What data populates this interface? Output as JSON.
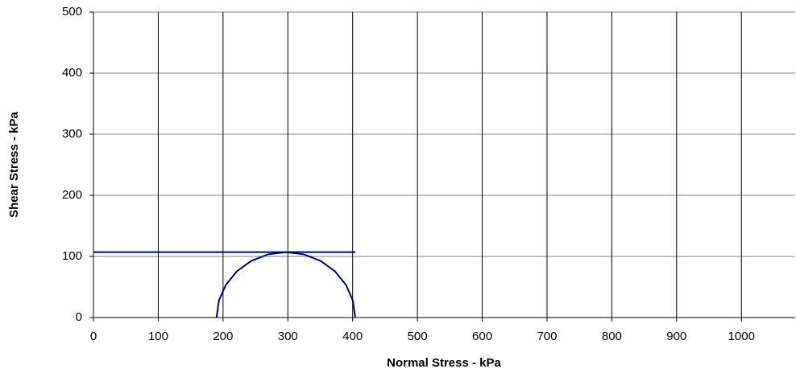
{
  "chart_data": {
    "type": "line",
    "xlabel": "Normal Stress - kPa",
    "ylabel": "Shear Stress - kPa",
    "xlim": [
      0,
      1083
    ],
    "ylim": [
      0,
      500
    ],
    "xticks": [
      0,
      100,
      200,
      300,
      400,
      500,
      600,
      700,
      800,
      900,
      1000
    ],
    "yticks": [
      0,
      100,
      200,
      300,
      400,
      500
    ],
    "grid": true,
    "series": [
      {
        "color": "#000080",
        "x": [
          0,
          404
        ],
        "values": [
          107,
          107
        ]
      },
      {
        "color": "#000080",
        "x": [
          404,
          400.4,
          389.7,
          372.7,
          350.5,
          324.7,
          297,
          269.3,
          243.5,
          221.3,
          204.3,
          193.6,
          190
        ],
        "values": [
          0,
          27.7,
          53.5,
          75.7,
          92.7,
          103.4,
          107,
          103.4,
          92.7,
          75.7,
          53.5,
          27.7,
          0
        ]
      }
    ]
  }
}
